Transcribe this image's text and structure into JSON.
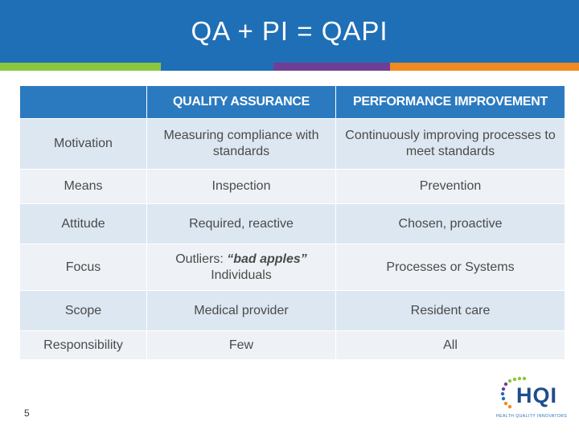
{
  "slide": {
    "title": "QA + PI = QAPI",
    "page_number": "5"
  },
  "colors": {
    "header": "#1f6fb6",
    "stripe_green": "#8cc63f",
    "stripe_blue": "#1f6fb6",
    "stripe_purple": "#6f3f96",
    "stripe_orange": "#f18b21",
    "table_header": "#2b7ac0",
    "row_dark": "#dce7f1",
    "row_light": "#eef2f6"
  },
  "table": {
    "headers": [
      "",
      "QUALITY ASSURANCE",
      "PERFORMANCE IMPROVEMENT"
    ],
    "rows": [
      {
        "label": "Motivation",
        "qa": "Measuring compliance with standards",
        "pi": "Continuously improving processes to meet standards"
      },
      {
        "label": "Means",
        "qa": "Inspection",
        "pi": "Prevention"
      },
      {
        "label": "Attitude",
        "qa": "Required, reactive",
        "pi": "Chosen, proactive"
      },
      {
        "label": "Focus",
        "qa_prefix": "Outliers: ",
        "qa_emphasis": "“bad apples”",
        "qa_line2": "Individuals",
        "pi": "Processes or Systems"
      },
      {
        "label": "Scope",
        "qa": "Medical provider",
        "pi": "Resident care"
      },
      {
        "label": "Responsibility",
        "qa": "Few",
        "pi": "All"
      }
    ]
  },
  "logo": {
    "text": "HQI",
    "subtitle": "HEALTH QUALITY INNOVATORS",
    "icon": "hqi-logo-icon"
  }
}
